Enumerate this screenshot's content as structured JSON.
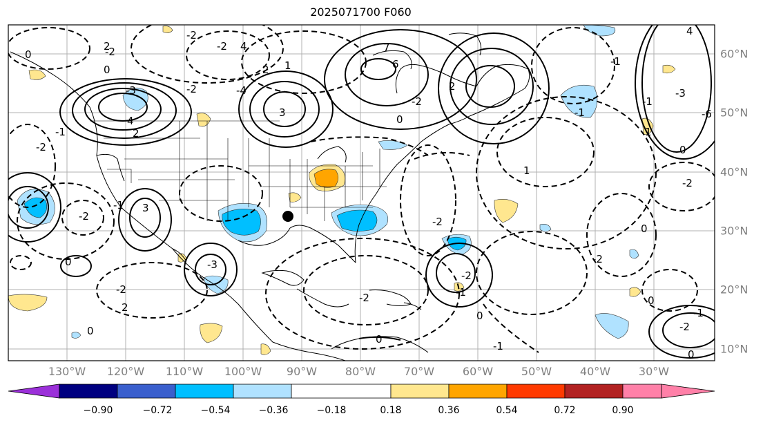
{
  "title": "2025071700 F060",
  "longitude_labels": [
    "130°W",
    "120°W",
    "110°W",
    "100°W",
    "90°W",
    "80°W",
    "70°W",
    "60°W",
    "50°W",
    "40°W",
    "30°W"
  ],
  "latitude_labels": [
    "60°N",
    "50°N",
    "40°N",
    "30°N",
    "20°N",
    "10°N"
  ],
  "colorbar": {
    "tick_labels": [
      "−0.90",
      "−0.72",
      "−0.54",
      "−0.36",
      "−0.18",
      "0.18",
      "0.36",
      "0.54",
      "0.72",
      "0.90"
    ],
    "colors": [
      "#9b30d9",
      "#000080",
      "#3a5fcd",
      "#00bfff",
      "#b0e2ff",
      "#ffffff",
      "#ffe78f",
      "#ffa500",
      "#ff3a00",
      "#b22222",
      "#ff80a8"
    ]
  },
  "contour_labels": [
    "0",
    "2",
    "4",
    "2",
    "-3",
    "4",
    "2",
    "1",
    "-2",
    "-2",
    "-4",
    "-2",
    "-2",
    "7",
    "6",
    "-2",
    "2",
    "0",
    "3",
    "0",
    "-2",
    "-2",
    "-1",
    "-1",
    "3",
    "-3",
    "0",
    "-2",
    "2",
    "0",
    "-2",
    "-1",
    "0",
    "-2",
    "-2",
    "1",
    "0",
    "-2",
    "0",
    "-3",
    "0",
    "1",
    "-1",
    "-1",
    "-1",
    "0",
    "-2",
    "0",
    "-6",
    "4",
    "-1",
    "-2",
    "-1"
  ],
  "marker": "filled-circle"
}
